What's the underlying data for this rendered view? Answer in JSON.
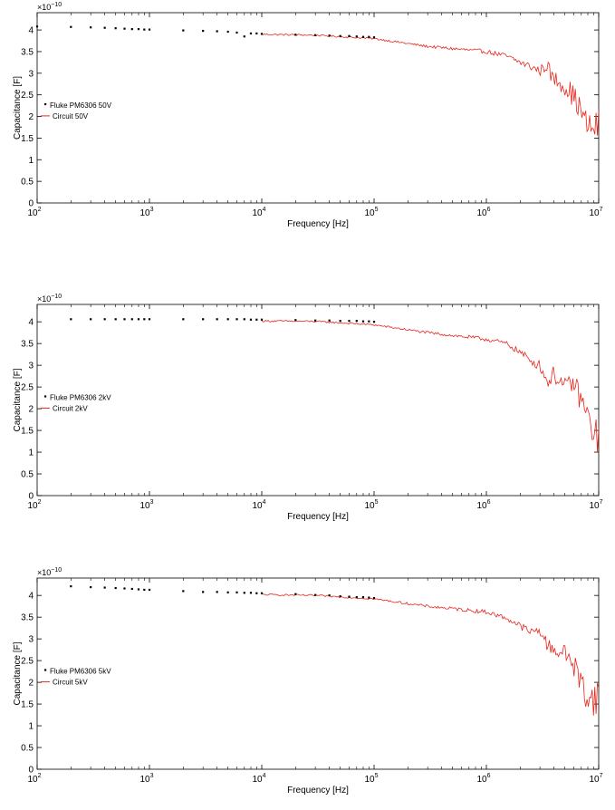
{
  "chart_data": [
    {
      "type": "scatter",
      "xscale": "log",
      "xlim": [
        100,
        10000000
      ],
      "ylim": [
        0,
        4.4
      ],
      "y_multiplier_label": "×10",
      "y_multiplier_exponent": "−10",
      "xlabel": "Frequency [Hz]",
      "ylabel": "Capacitance [F]",
      "x_ticks": [
        {
          "base": "10",
          "exp": "2"
        },
        {
          "base": "10",
          "exp": "3"
        },
        {
          "base": "10",
          "exp": "4"
        },
        {
          "base": "10",
          "exp": "5"
        },
        {
          "base": "10",
          "exp": "6"
        },
        {
          "base": "10",
          "exp": "7"
        }
      ],
      "y_ticks": [
        "0",
        "0.5",
        "1",
        "1.5",
        "2",
        "2.5",
        "3",
        "3.5",
        "4"
      ],
      "legend": {
        "placement": "middle-left",
        "entries": [
          "Fluke PM6306 50V",
          "Circuit 50V"
        ]
      },
      "series": [
        {
          "name": "Fluke PM6306 50V",
          "style": "markers",
          "color": "#000000",
          "x": [
            100,
            200,
            300,
            400,
            500,
            600,
            700,
            800,
            900,
            1000,
            2000,
            3000,
            4000,
            5000,
            6000,
            7000,
            8000,
            9000,
            10000,
            20000,
            30000,
            40000,
            50000,
            60000,
            70000,
            80000,
            90000,
            100000
          ],
          "y": [
            4.08,
            4.07,
            4.06,
            4.05,
            4.04,
            4.03,
            4.02,
            4.02,
            4.01,
            4.01,
            3.99,
            3.98,
            3.97,
            3.96,
            3.94,
            3.85,
            3.92,
            3.92,
            3.91,
            3.89,
            3.88,
            3.87,
            3.86,
            3.86,
            3.85,
            3.84,
            3.84,
            3.83
          ]
        },
        {
          "name": "Circuit 50V",
          "style": "line",
          "color": "#e8251c",
          "anchors": [
            [
              10000,
              3.9
            ],
            [
              30000,
              3.88
            ],
            [
              100000,
              3.8
            ],
            [
              300000,
              3.62
            ],
            [
              1000000,
              3.5
            ],
            [
              1500000,
              3.4
            ],
            [
              2000000,
              3.25
            ],
            [
              2500000,
              3.15
            ],
            [
              3000000,
              3.05
            ],
            [
              3500000,
              3.2
            ],
            [
              3800000,
              2.9
            ],
            [
              4500000,
              2.8
            ],
            [
              5500000,
              2.6
            ],
            [
              6500000,
              2.3
            ],
            [
              7500000,
              1.9
            ],
            [
              8500000,
              1.7
            ],
            [
              10000000,
              1.8
            ]
          ],
          "noise": [
            0.02,
            0.02,
            0.02,
            0.03,
            0.05,
            0.06,
            0.08,
            0.1,
            0.12,
            0.15,
            0.2,
            0.2,
            0.25,
            0.3,
            0.3,
            0.35,
            0.4
          ]
        }
      ]
    },
    {
      "type": "scatter",
      "xscale": "log",
      "xlim": [
        100,
        10000000
      ],
      "ylim": [
        0,
        4.4
      ],
      "y_multiplier_label": "×10",
      "y_multiplier_exponent": "−10",
      "xlabel": "Frequency [Hz]",
      "ylabel": "Capacitance [F]",
      "x_ticks": [
        {
          "base": "10",
          "exp": "2"
        },
        {
          "base": "10",
          "exp": "3"
        },
        {
          "base": "10",
          "exp": "4"
        },
        {
          "base": "10",
          "exp": "5"
        },
        {
          "base": "10",
          "exp": "6"
        },
        {
          "base": "10",
          "exp": "7"
        }
      ],
      "y_ticks": [
        "0",
        "0.5",
        "1",
        "1.5",
        "2",
        "2.5",
        "3",
        "3.5",
        "4"
      ],
      "legend": {
        "placement": "middle-left",
        "entries": [
          "Fluke PM6306 2kV",
          "Circuit 2kV"
        ]
      },
      "series": [
        {
          "name": "Fluke PM6306 2kV",
          "style": "markers",
          "color": "#000000",
          "x": [
            200,
            300,
            400,
            500,
            600,
            700,
            800,
            900,
            1000,
            2000,
            3000,
            4000,
            5000,
            6000,
            7000,
            8000,
            9000,
            10000,
            20000,
            30000,
            40000,
            50000,
            60000,
            70000,
            80000,
            90000,
            100000
          ],
          "y": [
            4.06,
            4.06,
            4.06,
            4.06,
            4.06,
            4.06,
            4.06,
            4.06,
            4.06,
            4.06,
            4.06,
            4.06,
            4.06,
            4.06,
            4.06,
            4.05,
            4.05,
            4.05,
            4.04,
            4.03,
            4.03,
            4.02,
            4.02,
            4.02,
            4.01,
            4.01,
            4.0
          ]
        },
        {
          "name": "Circuit 2kV",
          "style": "line",
          "color": "#e8251c",
          "anchors": [
            [
              10000,
              4.02
            ],
            [
              30000,
              4.01
            ],
            [
              100000,
              3.93
            ],
            [
              300000,
              3.75
            ],
            [
              1000000,
              3.6
            ],
            [
              1500000,
              3.5
            ],
            [
              2000000,
              3.3
            ],
            [
              2500000,
              3.1
            ],
            [
              3000000,
              3.0
            ],
            [
              3500000,
              2.6
            ],
            [
              4000000,
              2.8
            ],
            [
              5000000,
              2.5
            ],
            [
              6000000,
              2.6
            ],
            [
              7000000,
              2.2
            ],
            [
              8500000,
              1.6
            ],
            [
              10000000,
              1.3
            ]
          ],
          "noise": [
            0.02,
            0.02,
            0.02,
            0.03,
            0.05,
            0.06,
            0.08,
            0.1,
            0.12,
            0.15,
            0.2,
            0.2,
            0.25,
            0.3,
            0.35,
            0.4
          ]
        }
      ]
    },
    {
      "type": "scatter",
      "xscale": "log",
      "xlim": [
        100,
        10000000
      ],
      "ylim": [
        0,
        4.4
      ],
      "y_multiplier_label": "×10",
      "y_multiplier_exponent": "−10",
      "xlabel": "Frequency [Hz]",
      "ylabel": "Capacitance [F]",
      "x_ticks": [
        {
          "base": "10",
          "exp": "2"
        },
        {
          "base": "10",
          "exp": "3"
        },
        {
          "base": "10",
          "exp": "4"
        },
        {
          "base": "10",
          "exp": "5"
        },
        {
          "base": "10",
          "exp": "6"
        },
        {
          "base": "10",
          "exp": "7"
        }
      ],
      "y_ticks": [
        "0",
        "0.5",
        "1",
        "1.5",
        "2",
        "2.5",
        "3",
        "3.5",
        "4"
      ],
      "legend": {
        "placement": "middle-left",
        "entries": [
          "Fluke PM6306 5kV",
          "Circuit 5kV"
        ]
      },
      "series": [
        {
          "name": "Fluke PM6306 5kV",
          "style": "markers",
          "color": "#000000",
          "x": [
            200,
            300,
            400,
            500,
            600,
            700,
            800,
            900,
            1000,
            2000,
            3000,
            4000,
            5000,
            6000,
            7000,
            8000,
            9000,
            10000,
            20000,
            30000,
            40000,
            50000,
            60000,
            70000,
            80000,
            90000,
            100000
          ],
          "y": [
            4.21,
            4.19,
            4.18,
            4.17,
            4.16,
            4.15,
            4.14,
            4.13,
            4.13,
            4.1,
            4.08,
            4.08,
            4.07,
            4.07,
            4.06,
            4.06,
            4.05,
            4.05,
            4.03,
            4.01,
            4.0,
            3.98,
            3.97,
            3.96,
            3.96,
            3.95,
            3.94
          ]
        },
        {
          "name": "Circuit 5kV",
          "style": "line",
          "color": "#e8251c",
          "anchors": [
            [
              10000,
              4.02
            ],
            [
              30000,
              4.0
            ],
            [
              100000,
              3.92
            ],
            [
              300000,
              3.75
            ],
            [
              1000000,
              3.62
            ],
            [
              1500000,
              3.48
            ],
            [
              2000000,
              3.3
            ],
            [
              2500000,
              3.15
            ],
            [
              3000000,
              3.2
            ],
            [
              3500000,
              2.85
            ],
            [
              4500000,
              2.7
            ],
            [
              5500000,
              2.6
            ],
            [
              6500000,
              2.2
            ],
            [
              7500000,
              1.8
            ],
            [
              8500000,
              1.6
            ],
            [
              10000000,
              1.7
            ]
          ],
          "noise": [
            0.02,
            0.02,
            0.02,
            0.03,
            0.05,
            0.06,
            0.08,
            0.1,
            0.12,
            0.15,
            0.2,
            0.25,
            0.3,
            0.35,
            0.4,
            0.4
          ]
        }
      ]
    }
  ]
}
